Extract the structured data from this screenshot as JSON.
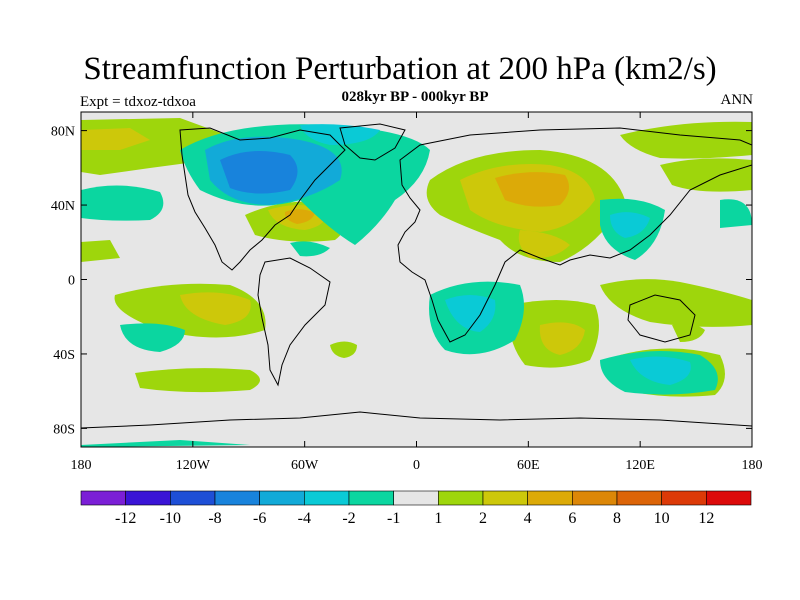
{
  "title": "Streamfunction Perturbation at 200 hPa (km2/s)",
  "subtitle": "028kyr BP - 000kyr BP",
  "left_label": "Expt = tdxoz-tdxoa",
  "right_label": "ANN",
  "map": {
    "lon_range": [
      -180,
      180
    ],
    "lat_range": [
      -90,
      90
    ],
    "lat_ticks": [
      {
        "value": 80,
        "label": "80N"
      },
      {
        "value": 40,
        "label": "40N"
      },
      {
        "value": 0,
        "label": "0"
      },
      {
        "value": -40,
        "label": "40S"
      },
      {
        "value": -80,
        "label": "80S"
      }
    ],
    "lon_ticks": [
      {
        "value": -180,
        "label": "180"
      },
      {
        "value": -120,
        "label": "120W"
      },
      {
        "value": -60,
        "label": "60W"
      },
      {
        "value": 0,
        "label": "0"
      },
      {
        "value": 60,
        "label": "60E"
      },
      {
        "value": 120,
        "label": "120E"
      },
      {
        "value": 180,
        "label": "180"
      }
    ],
    "background_color": "#e6e6e6"
  },
  "colorbar": {
    "colors": [
      "#7b1fd6",
      "#3a14d6",
      "#1e4fd6",
      "#1883dc",
      "#12aad8",
      "#0acad6",
      "#0bd6a0",
      "#e6e6e6",
      "#9ed60c",
      "#cdc80a",
      "#dcaa08",
      "#dc8708",
      "#dc6408",
      "#dc3a08",
      "#dc0a0a"
    ],
    "labels": [
      "-12",
      "-10",
      "-8",
      "-6",
      "-4",
      "-2",
      "-1",
      "1",
      "2",
      "4",
      "6",
      "8",
      "10",
      "12"
    ]
  }
}
